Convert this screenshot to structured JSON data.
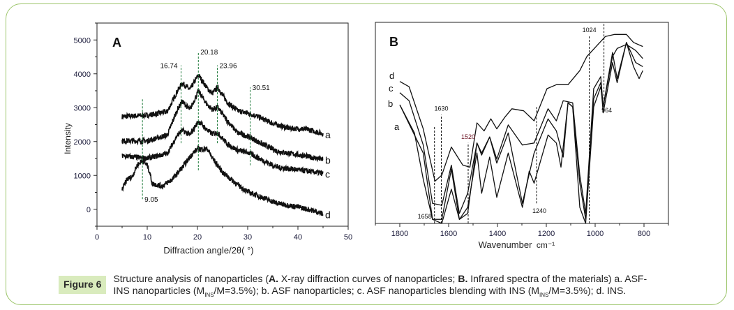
{
  "figure": {
    "label": "Figure 6",
    "caption": {
      "p1": "Structure analysis of nanoparticles (",
      "b1": "A.",
      "p2": " X-ray diffraction curves of nanoparticles; ",
      "b2": "B.",
      "p3": " Infrared spectra of the materials) a. ASF-INS nanoparticles (M",
      "sub1": "INS",
      "p4": "/M=3.5%); b. ASF nanoparticles; c. ASF nanoparticles blending with INS (M",
      "sub2": "INS",
      "p5": "/M=3.5%); d. INS."
    },
    "border_color": "#9cc56a",
    "label_bg": "#d9ebbd"
  },
  "chart_data": [
    {
      "panel": "A",
      "type": "line",
      "xlabel": "Diffraction angle/2θ( °)",
      "ylabel": "Intensity",
      "xlim": [
        0,
        50
      ],
      "ylim": [
        -500,
        5500
      ],
      "xticks": [
        0,
        10,
        20,
        30,
        40,
        50
      ],
      "yticks": [
        0,
        1000,
        2000,
        3000,
        4000,
        5000
      ],
      "grid": false,
      "line_color": "#111111",
      "annotation_color": "#1e7a3a",
      "series": [
        {
          "name": "a",
          "x": [
            5,
            10,
            14,
            16,
            17,
            18.5,
            20.2,
            22,
            23,
            24,
            26,
            28,
            30,
            32,
            35,
            38,
            42,
            45
          ],
          "y": [
            2740,
            2775,
            2880,
            3490,
            3730,
            3530,
            3970,
            3560,
            3425,
            3600,
            3150,
            2910,
            2840,
            2740,
            2535,
            2400,
            2360,
            2225
          ]
        },
        {
          "name": "b",
          "x": [
            5,
            10,
            14,
            16,
            17,
            18.5,
            20.2,
            22,
            23,
            24,
            26,
            28,
            30,
            33,
            36,
            40,
            45
          ],
          "y": [
            2020,
            2020,
            2190,
            2945,
            3185,
            2945,
            3490,
            3080,
            2945,
            3015,
            2600,
            2260,
            2160,
            1920,
            1710,
            1610,
            1470
          ]
        },
        {
          "name": "c",
          "x": [
            5,
            10,
            14,
            16,
            17,
            18.5,
            20.2,
            22,
            23,
            24,
            26,
            28,
            30,
            33,
            36,
            40,
            45
          ],
          "y": [
            1575,
            1505,
            1645,
            2190,
            2330,
            2190,
            2600,
            2330,
            2225,
            2260,
            1920,
            1745,
            1680,
            1440,
            1235,
            1165,
            1060
          ]
        },
        {
          "name": "d",
          "x": [
            5,
            6,
            7,
            8,
            9,
            10,
            10.5,
            11,
            13,
            15,
            17,
            19,
            20,
            22,
            23,
            25,
            28,
            30,
            33,
            36,
            40,
            43,
            45
          ],
          "y": [
            580,
            890,
            960,
            1300,
            1440,
            1300,
            1095,
            755,
            685,
            890,
            1235,
            1645,
            1780,
            1780,
            1505,
            1095,
            720,
            515,
            345,
            170,
            70,
            -35,
            -135
          ]
        }
      ],
      "annotations": [
        {
          "label": "9.05",
          "x": 9.05,
          "y_from": 300,
          "y_to": 3250
        },
        {
          "label": "16.74",
          "x": 16.74,
          "y_from": 1950,
          "y_to": 4250
        },
        {
          "label": "20.18",
          "x": 20.18,
          "y_from": 1150,
          "y_to": 4650
        },
        {
          "label": "23.96",
          "x": 23.96,
          "y_from": 1950,
          "y_to": 4250
        },
        {
          "label": "30.51",
          "x": 30.51,
          "y_from": 1300,
          "y_to": 3600
        }
      ]
    },
    {
      "panel": "B",
      "type": "line",
      "xlabel": "Wavenumber",
      "xunit": "cm⁻¹",
      "xlim": [
        1900,
        700
      ],
      "ylim": [
        0,
        100
      ],
      "xticks": [
        1800,
        1600,
        1400,
        1200,
        1000,
        800
      ],
      "x_reversed": true,
      "y_axis_labels": false,
      "grid": false,
      "line_color": "#111111",
      "series": [
        {
          "name": "d",
          "x": [
            1800,
            1762,
            1704,
            1656,
            1628,
            1589,
            1542,
            1513,
            1484,
            1455,
            1427,
            1403,
            1369,
            1341,
            1293,
            1250,
            1197,
            1159,
            1111,
            1063,
            1034,
            996,
            958,
            920,
            872,
            843,
            805
          ],
          "y": [
            70.6,
            68,
            47,
            21,
            24,
            38,
            29,
            28,
            50,
            46,
            52,
            47,
            53,
            57,
            56,
            51,
            67,
            69,
            69,
            76,
            83,
            88,
            93,
            94,
            94,
            90,
            88
          ]
        },
        {
          "name": "c",
          "x": [
            1800,
            1762,
            1704,
            1666,
            1628,
            1589,
            1556,
            1522,
            1484,
            1465,
            1432,
            1403,
            1356,
            1298,
            1250,
            1193,
            1159,
            1131,
            1092,
            1063,
            1039,
            1006,
            977,
            967,
            929,
            910,
            872,
            834,
            805
          ],
          "y": [
            65,
            61,
            39,
            10,
            9,
            29,
            5,
            15,
            40,
            34,
            43,
            32,
            49,
            39,
            40,
            57,
            51,
            61,
            60,
            24,
            5,
            67,
            73,
            58,
            83,
            87,
            89,
            86,
            82
          ]
        },
        {
          "name": "b",
          "x": [
            1800,
            1704,
            1666,
            1628,
            1589,
            1556,
            1522,
            1484,
            1465,
            1432,
            1403,
            1356,
            1298,
            1250,
            1193,
            1159,
            1131,
            1111,
            1092,
            1063,
            1039,
            1006,
            977,
            967,
            929,
            910,
            872,
            834,
            805
          ],
          "y": [
            59,
            35,
            2,
            2,
            27,
            2,
            5,
            40,
            35,
            43,
            30,
            45,
            10,
            35,
            52,
            46,
            33,
            60,
            58,
            20,
            2,
            62,
            70,
            55,
            80,
            70,
            90,
            80,
            78
          ]
        },
        {
          "name": "a",
          "x": [
            1800,
            1740,
            1704,
            1666,
            1628,
            1589,
            1556,
            1522,
            1484,
            1465,
            1432,
            1403,
            1356,
            1298,
            1270,
            1250,
            1193,
            1159,
            1140,
            1111,
            1092,
            1063,
            1039,
            1006,
            977,
            967,
            929,
            910,
            872,
            843,
            820,
            805
          ],
          "y": [
            59,
            45,
            22,
            2,
            0,
            17,
            2,
            8,
            35,
            15,
            33,
            13,
            35,
            8,
            26,
            20,
            44,
            40,
            28,
            60,
            58,
            8,
            0,
            58,
            68,
            58,
            85,
            72,
            90,
            78,
            72,
            76
          ]
        }
      ],
      "annotations": [
        {
          "label": "1658",
          "x": 1658,
          "y_from": 0,
          "y_to": 48
        },
        {
          "label": "1630",
          "x": 1630,
          "y_from": 0,
          "y_to": 54
        },
        {
          "label": "1520",
          "x": 1520,
          "y_from": 0,
          "y_to": 40
        },
        {
          "label": "1240",
          "x": 1240,
          "y_from": 10,
          "y_to": 58
        },
        {
          "label": "1024",
          "x": 1024,
          "y_from": 0,
          "y_to": 93
        },
        {
          "label": "964",
          "x": 964,
          "y_from": 60,
          "y_to": 100
        }
      ]
    }
  ]
}
